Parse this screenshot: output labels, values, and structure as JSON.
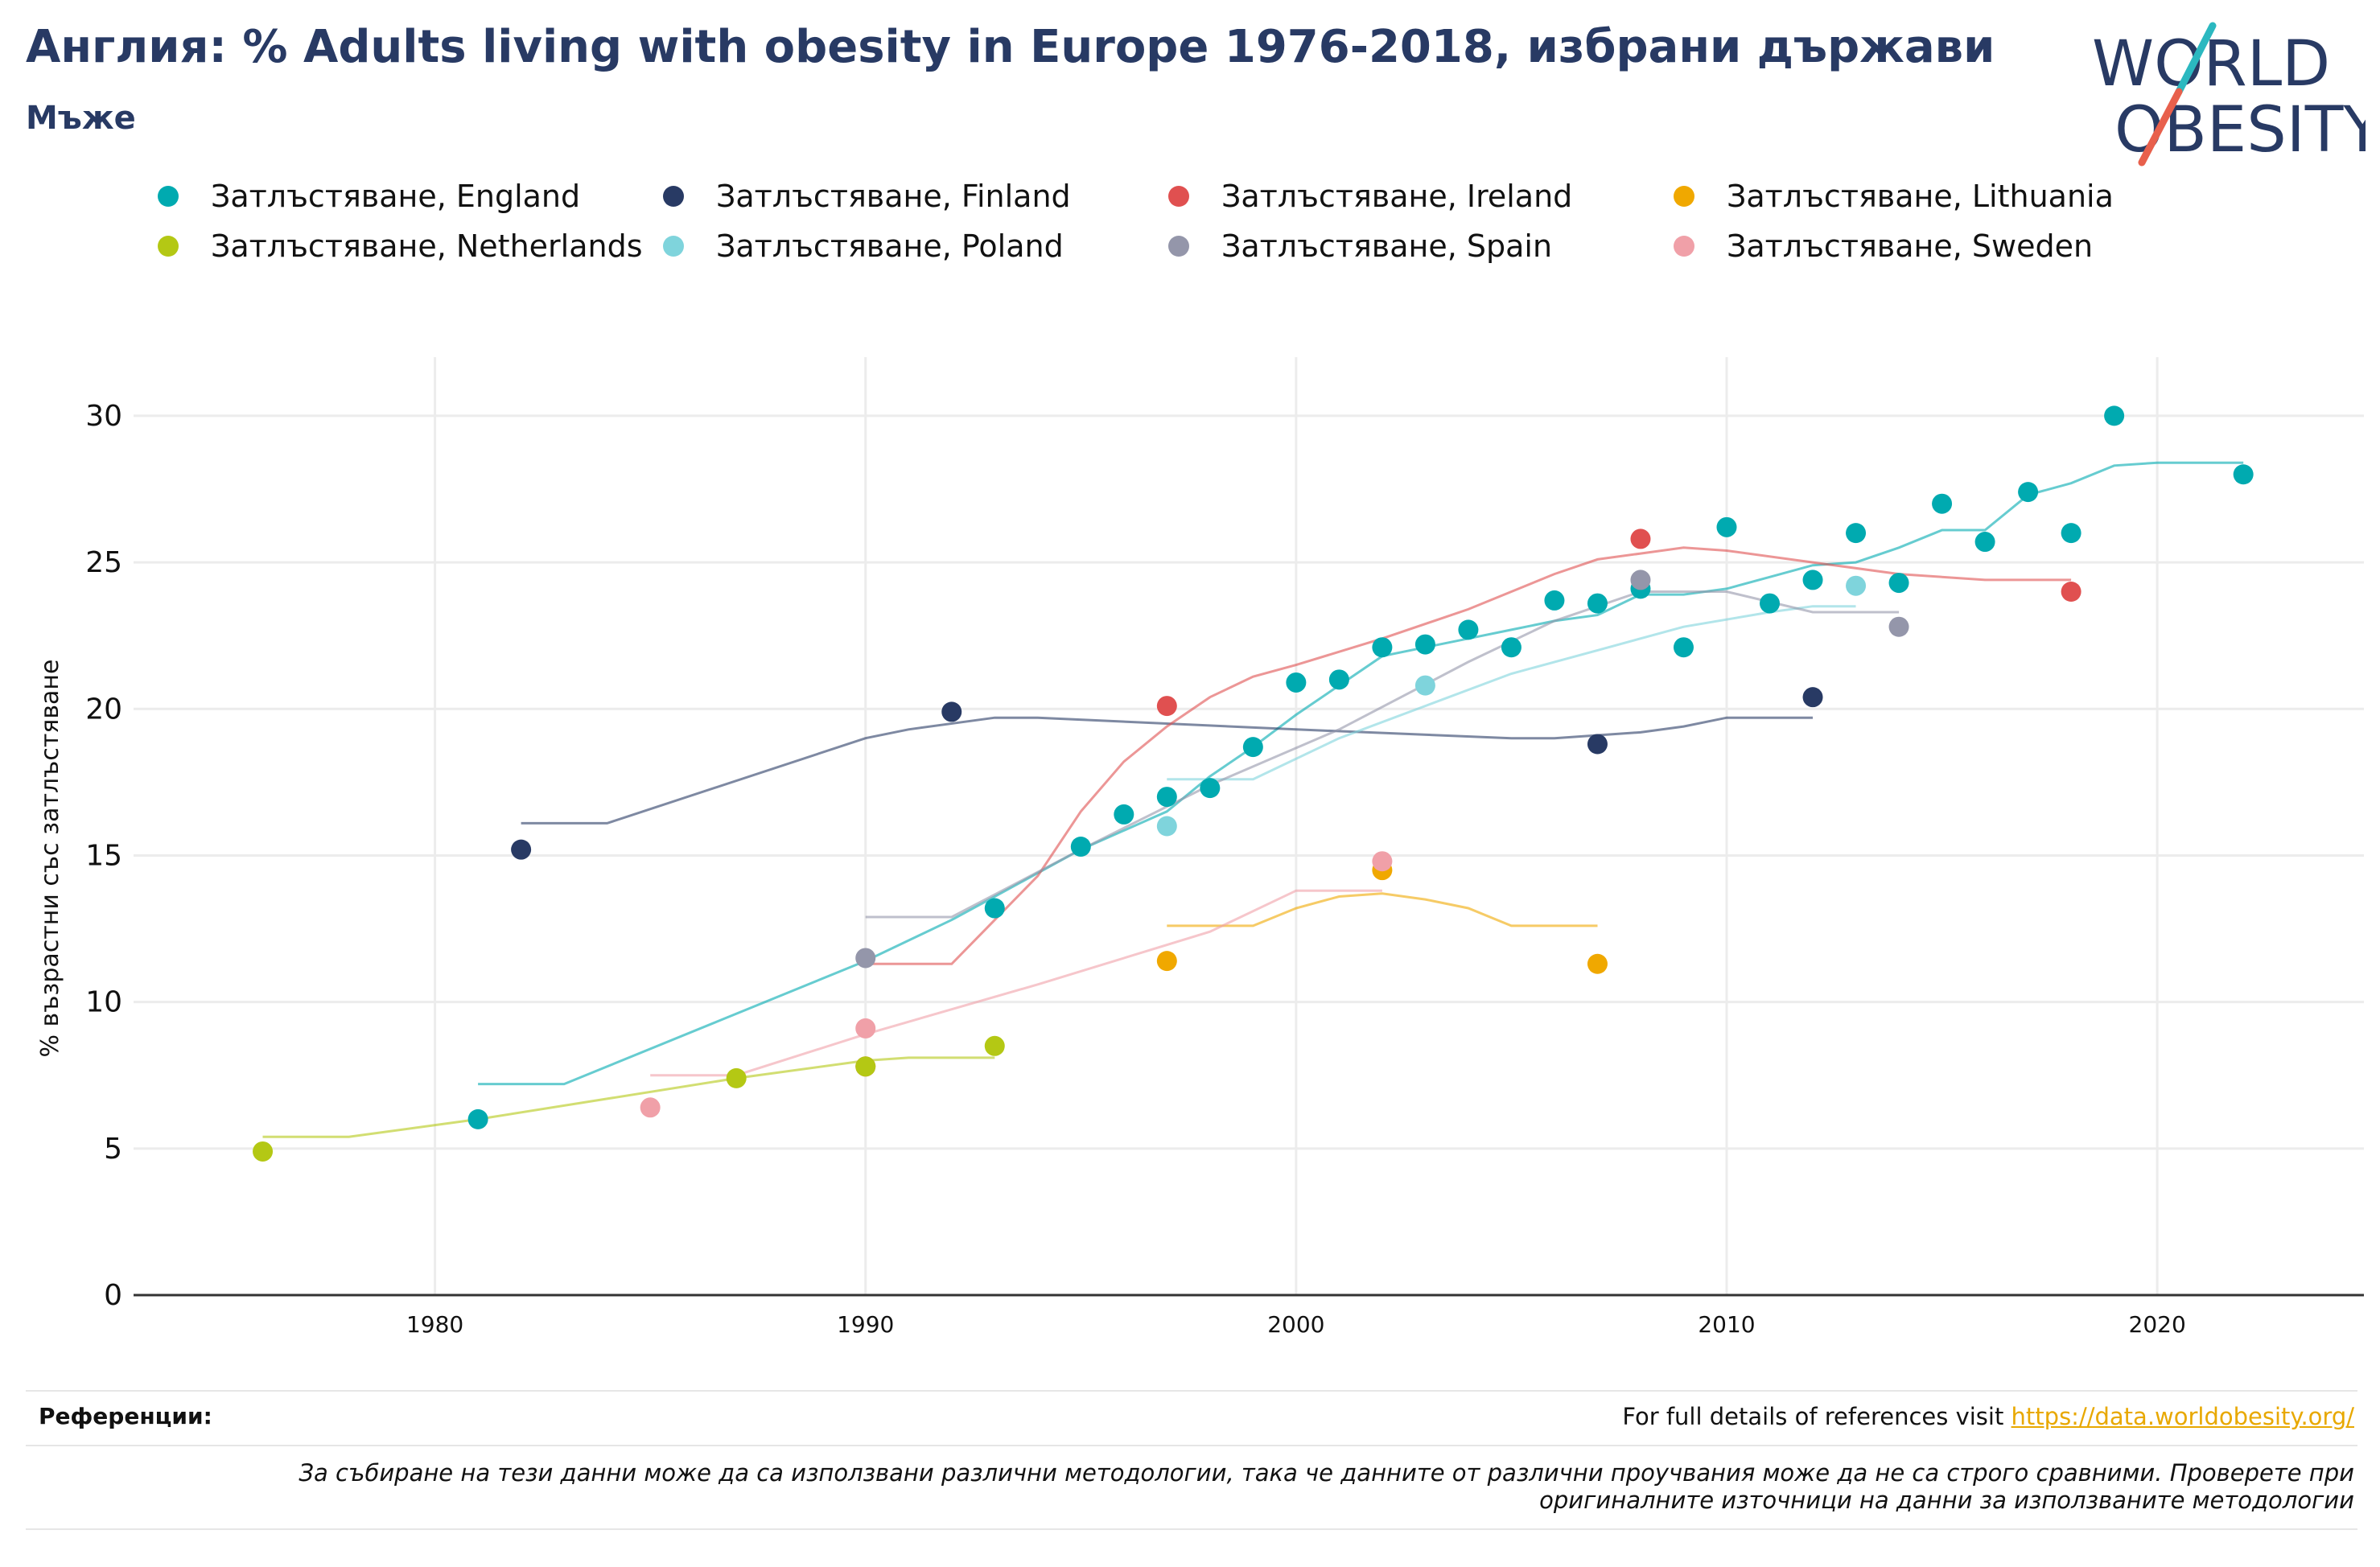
{
  "title": "Англия: % Adults living with obesity in Europe 1976-2018, избрани държави",
  "subtitle": "Мъже",
  "logo": {
    "line1": "WORLD",
    "line2": "OBESITY"
  },
  "footer": {
    "refs_label": "Референции:",
    "refs_text": "For full details of references visit ",
    "refs_link": "https://data.worldobesity.org/",
    "note_line1": "За събиране на тези данни може да са използвани различни методологии, така че данните от различни проучвания може да не са строго сравними. Проверете при",
    "note_line2": "оригиналните източници на данни за използваните методологии"
  },
  "chart_data": {
    "type": "scatter",
    "ylabel": "% възрастни със затлъстяване",
    "xlabel": "",
    "xlim": [
      1973,
      2024.8
    ],
    "ylim": [
      0,
      32
    ],
    "x_ticks": [
      1980,
      1990,
      2000,
      2010,
      2020
    ],
    "y_ticks": [
      0,
      5,
      10,
      15,
      20,
      25,
      30
    ],
    "grid": true,
    "legend_position": "top",
    "series": [
      {
        "name": "Затлъстяване, England",
        "color": "#00aab0",
        "points": [
          [
            1981,
            6.0
          ],
          [
            1993,
            13.2
          ],
          [
            1995,
            15.3
          ],
          [
            1996,
            16.4
          ],
          [
            1997,
            17.0
          ],
          [
            1998,
            17.3
          ],
          [
            1999,
            18.7
          ],
          [
            2000,
            20.9
          ],
          [
            2001,
            21.0
          ],
          [
            2002,
            22.1
          ],
          [
            2003,
            22.2
          ],
          [
            2004,
            22.7
          ],
          [
            2005,
            22.1
          ],
          [
            2006,
            23.7
          ],
          [
            2007,
            23.6
          ],
          [
            2008,
            24.1
          ],
          [
            2009,
            22.1
          ],
          [
            2010,
            26.2
          ],
          [
            2011,
            23.6
          ],
          [
            2012,
            24.4
          ],
          [
            2013,
            26.0
          ],
          [
            2014,
            24.3
          ],
          [
            2015,
            27.0
          ],
          [
            2016,
            25.7
          ],
          [
            2017,
            27.4
          ],
          [
            2018,
            26.0
          ],
          [
            2019,
            30.0
          ],
          [
            2022,
            28.0
          ]
        ],
        "trend": [
          [
            1981,
            7.2
          ],
          [
            1983,
            7.2
          ],
          [
            1990,
            11.4
          ],
          [
            1992,
            12.8
          ],
          [
            1993,
            13.6
          ],
          [
            1995,
            15.2
          ],
          [
            1997,
            16.5
          ],
          [
            1998,
            17.7
          ],
          [
            1999,
            18.7
          ],
          [
            2000,
            19.8
          ],
          [
            2001,
            20.8
          ],
          [
            2002,
            21.8
          ],
          [
            2003,
            22.1
          ],
          [
            2004,
            22.4
          ],
          [
            2005,
            22.7
          ],
          [
            2006,
            23.0
          ],
          [
            2007,
            23.2
          ],
          [
            2008,
            23.9
          ],
          [
            2009,
            23.9
          ],
          [
            2010,
            24.1
          ],
          [
            2011,
            24.5
          ],
          [
            2012,
            24.9
          ],
          [
            2013,
            25.0
          ],
          [
            2014,
            25.5
          ],
          [
            2015,
            26.1
          ],
          [
            2016,
            26.1
          ],
          [
            2017,
            27.3
          ],
          [
            2018,
            27.7
          ],
          [
            2019,
            28.3
          ],
          [
            2020,
            28.4
          ],
          [
            2022,
            28.4
          ]
        ]
      },
      {
        "name": "Затлъстяване, Finland",
        "color": "#283a64",
        "points": [
          [
            1982,
            15.2
          ],
          [
            1992,
            19.9
          ],
          [
            2007,
            18.8
          ],
          [
            2012,
            20.4
          ]
        ],
        "trend": [
          [
            1982,
            16.1
          ],
          [
            1984,
            16.1
          ],
          [
            1990,
            19.0
          ],
          [
            1991,
            19.3
          ],
          [
            1993,
            19.7
          ],
          [
            1994,
            19.7
          ],
          [
            2000,
            19.3
          ],
          [
            2005,
            19.0
          ],
          [
            2006,
            19.0
          ],
          [
            2008,
            19.2
          ],
          [
            2009,
            19.4
          ],
          [
            2010,
            19.7
          ],
          [
            2012,
            19.7
          ]
        ]
      },
      {
        "name": "Затлъстяване, Ireland",
        "color": "#e05050",
        "points": [
          [
            1990,
            7.8
          ],
          [
            1997,
            20.1
          ],
          [
            2008,
            25.8
          ],
          [
            2018,
            24.0
          ]
        ],
        "trend": [
          [
            1990,
            11.3
          ],
          [
            1992,
            11.3
          ],
          [
            1994,
            14.3
          ],
          [
            1995,
            16.5
          ],
          [
            1996,
            18.2
          ],
          [
            1997,
            19.4
          ],
          [
            1998,
            20.4
          ],
          [
            1999,
            21.1
          ],
          [
            2000,
            21.5
          ],
          [
            2002,
            22.4
          ],
          [
            2004,
            23.4
          ],
          [
            2006,
            24.6
          ],
          [
            2007,
            25.1
          ],
          [
            2008,
            25.3
          ],
          [
            2009,
            25.5
          ],
          [
            2010,
            25.4
          ],
          [
            2012,
            25.0
          ],
          [
            2014,
            24.6
          ],
          [
            2016,
            24.4
          ],
          [
            2018,
            24.4
          ]
        ]
      },
      {
        "name": "Затлъстяване, Lithuania",
        "color": "#f0a800",
        "points": [
          [
            1997,
            11.4
          ],
          [
            2002,
            14.5
          ],
          [
            2007,
            11.3
          ]
        ],
        "trend": [
          [
            1997,
            12.6
          ],
          [
            1999,
            12.6
          ],
          [
            2000,
            13.2
          ],
          [
            2001,
            13.6
          ],
          [
            2002,
            13.7
          ],
          [
            2003,
            13.5
          ],
          [
            2004,
            13.2
          ],
          [
            2005,
            12.6
          ],
          [
            2007,
            12.6
          ]
        ]
      },
      {
        "name": "Затлъстяване, Netherlands",
        "color": "#b4c814",
        "points": [
          [
            1976,
            4.9
          ],
          [
            1987,
            7.4
          ],
          [
            1990,
            7.8
          ],
          [
            1993,
            8.5
          ]
        ],
        "trend": [
          [
            1976,
            5.4
          ],
          [
            1978,
            5.4
          ],
          [
            1981,
            6.0
          ],
          [
            1984,
            6.7
          ],
          [
            1987,
            7.4
          ],
          [
            1990,
            8.0
          ],
          [
            1991,
            8.1
          ],
          [
            1993,
            8.1
          ]
        ]
      },
      {
        "name": "Затлъстяване, Poland",
        "color": "#7fd4dc",
        "points": [
          [
            1997,
            16.0
          ],
          [
            2003,
            20.8
          ],
          [
            2013,
            24.2
          ]
        ],
        "trend": [
          [
            1997,
            17.6
          ],
          [
            1999,
            17.6
          ],
          [
            2001,
            19.0
          ],
          [
            2003,
            20.1
          ],
          [
            2005,
            21.2
          ],
          [
            2007,
            22.0
          ],
          [
            2009,
            22.8
          ],
          [
            2011,
            23.3
          ],
          [
            2012,
            23.5
          ],
          [
            2013,
            23.5
          ]
        ]
      },
      {
        "name": "Затлъстяване, Spain",
        "color": "#9496aa",
        "points": [
          [
            1990,
            11.5
          ],
          [
            2008,
            24.4
          ],
          [
            2014,
            22.8
          ]
        ],
        "trend": [
          [
            1990,
            12.9
          ],
          [
            1992,
            12.9
          ],
          [
            1995,
            15.2
          ],
          [
            1998,
            17.4
          ],
          [
            2001,
            19.3
          ],
          [
            2004,
            21.6
          ],
          [
            2006,
            23.0
          ],
          [
            2008,
            24.0
          ],
          [
            2010,
            24.0
          ],
          [
            2012,
            23.3
          ],
          [
            2014,
            23.3
          ]
        ]
      },
      {
        "name": "Затлъстяване, Sweden",
        "color": "#f0a0a8",
        "points": [
          [
            1985,
            6.4
          ],
          [
            1990,
            9.1
          ],
          [
            2002,
            14.8
          ]
        ],
        "trend": [
          [
            1985,
            7.5
          ],
          [
            1987,
            7.5
          ],
          [
            1990,
            8.9
          ],
          [
            1994,
            10.6
          ],
          [
            1998,
            12.4
          ],
          [
            2000,
            13.8
          ],
          [
            2002,
            13.8
          ]
        ]
      }
    ]
  }
}
